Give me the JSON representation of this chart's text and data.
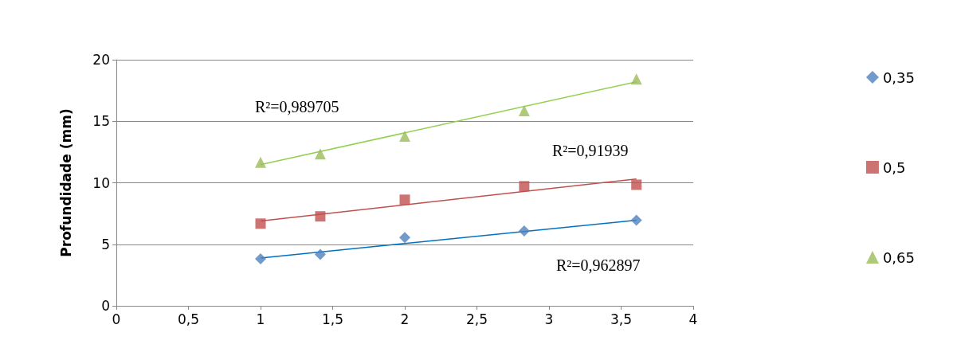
{
  "chart_data": {
    "type": "scatter",
    "ylabel": "Profundidade (mm)",
    "xlim": [
      0,
      4
    ],
    "xticks": [
      {
        "value": 0,
        "label": "0"
      },
      {
        "value": 0.5,
        "label": "0,5"
      },
      {
        "value": 1,
        "label": "1"
      },
      {
        "value": 1.5,
        "label": "1,5"
      },
      {
        "value": 2,
        "label": "2"
      },
      {
        "value": 2.5,
        "label": "2,5"
      },
      {
        "value": 3,
        "label": "3"
      },
      {
        "value": 3.5,
        "label": "3,5"
      },
      {
        "value": 4,
        "label": "4"
      }
    ],
    "ylim": [
      0,
      20
    ],
    "yticks": [
      0,
      5,
      10,
      15,
      20
    ],
    "grid": "y",
    "legend": "right",
    "series": [
      {
        "name": "0,35",
        "color": "#4f81bd",
        "marker": "diamond",
        "x": [
          1,
          1.414,
          2,
          2.828,
          3.606
        ],
        "values": [
          3.82,
          4.17,
          5.55,
          6.08,
          6.96
        ]
      },
      {
        "name": "0,5",
        "color": "#c0504d",
        "marker": "square",
        "x": [
          1,
          1.414,
          2,
          2.828,
          3.606
        ],
        "values": [
          6.68,
          7.27,
          8.62,
          9.72,
          9.84
        ]
      },
      {
        "name": "0,65",
        "color": "#9bbb59",
        "marker": "triangle",
        "x": [
          1,
          1.414,
          2,
          2.828,
          3.606
        ],
        "values": [
          11.66,
          12.35,
          13.79,
          15.86,
          18.43
        ]
      },
      {
        "type": "line",
        "color": "#0070c0",
        "marker": "none",
        "x": [
          1,
          3.606
        ],
        "values": [
          3.89,
          6.96
        ]
      },
      {
        "type": "line",
        "color": "#c0504d",
        "marker": "none",
        "x": [
          1,
          3.606
        ],
        "values": [
          6.9,
          10.31
        ]
      },
      {
        "type": "line",
        "color": "#92d050",
        "marker": "none",
        "x": [
          1,
          3.606
        ],
        "values": [
          11.47,
          18.21
        ]
      }
    ],
    "annotations": [
      "R²=0,989705",
      "R²=0,91939",
      "R²=0,962897"
    ]
  }
}
